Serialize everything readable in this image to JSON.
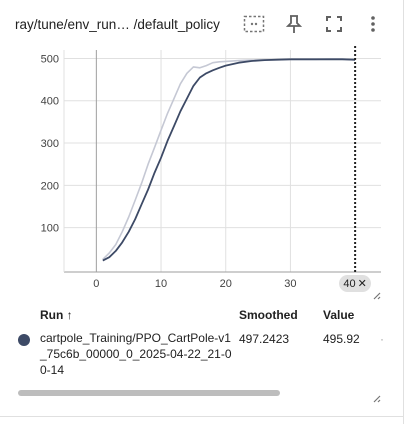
{
  "header": {
    "title": "ray/tune/env_run… /default_policy",
    "icons": [
      "data-selection-icon",
      "pin-icon",
      "fullscreen-icon",
      "more-vert-icon"
    ]
  },
  "chart_data": {
    "type": "line",
    "x_ticks": [
      "0",
      "10",
      "20",
      "30"
    ],
    "y_ticks": [
      "100",
      "200",
      "300",
      "400",
      "500"
    ],
    "xlim": [
      -5,
      44
    ],
    "ylim": [
      -5,
      520
    ],
    "cursor_x": 40,
    "cursor_label": "40",
    "series": [
      {
        "role": "raw",
        "color": "#c5c8d4",
        "x": [
          1,
          2,
          3,
          4,
          5,
          6,
          7,
          8,
          9,
          10,
          11,
          12,
          13,
          14,
          15,
          16,
          17,
          18,
          19,
          20,
          22,
          24,
          26,
          28,
          30,
          32,
          34,
          36,
          38,
          40
        ],
        "y": [
          25,
          40,
          60,
          90,
          125,
          165,
          205,
          250,
          290,
          330,
          370,
          405,
          440,
          465,
          480,
          478,
          483,
          490,
          492,
          493,
          495,
          496,
          497,
          497,
          498,
          498,
          498,
          499,
          499,
          496
        ]
      },
      {
        "role": "smoothed",
        "color": "#3d4a66",
        "x": [
          1,
          2,
          3,
          4,
          5,
          6,
          7,
          8,
          9,
          10,
          11,
          12,
          13,
          14,
          15,
          16,
          17,
          18,
          19,
          20,
          22,
          24,
          26,
          28,
          30,
          32,
          34,
          36,
          38,
          40
        ],
        "y": [
          22,
          30,
          45,
          65,
          90,
          120,
          155,
          190,
          230,
          265,
          305,
          340,
          375,
          405,
          435,
          455,
          465,
          472,
          478,
          483,
          490,
          494,
          496,
          497,
          498,
          498,
          498,
          498,
          498,
          497
        ]
      }
    ]
  },
  "table": {
    "headers": {
      "run": "Run ↑",
      "smoothed": "Smoothed",
      "value": "Value"
    },
    "rows": [
      {
        "color": "#3d4a66",
        "run": "cartpole_Training/PPO_CartPole-v1_75c6b_00000_0_2025-04-22_21-00-14",
        "smoothed": "497.2423",
        "value": "495.92"
      }
    ]
  }
}
